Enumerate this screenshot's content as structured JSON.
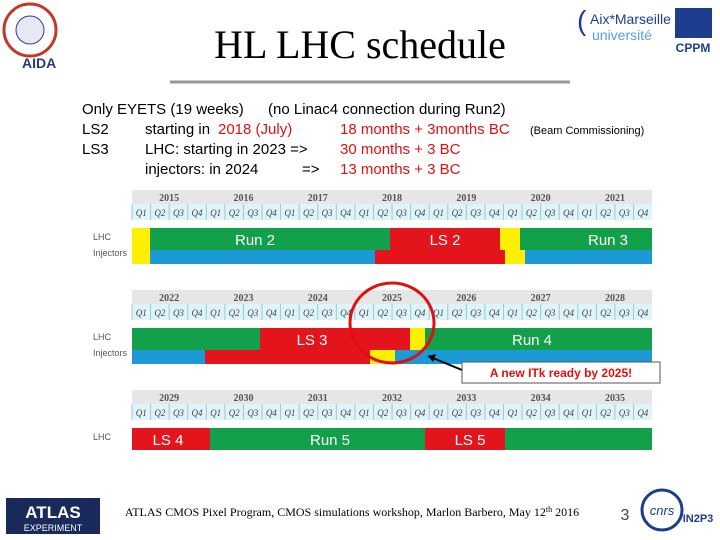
{
  "header": {
    "title": "HL LHC schedule",
    "logo_left": "AIDA",
    "logo_right_1": "Aix*Marseille",
    "logo_right_2": "université",
    "logo_right_3": "CPPM"
  },
  "notes": [
    [
      {
        "t": "Only EYETS (19 weeks)"
      },
      {
        "t": "(no Linac4 connection during Run2)"
      }
    ],
    [
      {
        "t": "LS2"
      },
      {
        "t": "starting in"
      },
      {
        "t": "2018 (July)",
        "red": true
      },
      {
        "t": "18 months + 3months BC",
        "red": true
      },
      {
        "t": "(Beam Commissioning)",
        "small": true
      }
    ],
    [
      {
        "t": "LS3"
      },
      {
        "t": "LHC: starting in 2023 =>"
      },
      {
        "t": "30 months + 3 BC",
        "red": true
      }
    ],
    [
      {
        "t": "injectors: in 2024"
      },
      {
        "t": "=>"
      },
      {
        "t": "13 months + 3 BC",
        "red": true
      }
    ]
  ],
  "timeline": {
    "quarters": [
      "Q1",
      "Q2",
      "Q3",
      "Q4"
    ],
    "row_labels": [
      "LHC",
      "Injectors"
    ],
    "panels": [
      {
        "years": [
          "2015",
          "2016",
          "2017",
          "2018",
          "2019",
          "2020",
          "2021"
        ],
        "labels": [
          "Run 2",
          "LS 2",
          "Run 3"
        ]
      },
      {
        "years": [
          "2022",
          "2023",
          "2024",
          "2025",
          "2026",
          "2027",
          "2028"
        ],
        "labels": [
          "LS 3",
          "Run 4"
        ]
      },
      {
        "years": [
          "2029",
          "2030",
          "2031",
          "2032",
          "2033",
          "2034",
          "2035"
        ],
        "labels": [
          "LS 4",
          "Run 5",
          "LS 5"
        ]
      }
    ],
    "callout": "A new ITk ready by 2025!"
  },
  "footer": {
    "logo_left": "ATLAS",
    "logo_left_sub": "EXPERIMENT",
    "text_before": "ATLAS CMOS Pixel Program, CMOS simulations workshop, Marlon Barbero, May 12",
    "text_sup": "th",
    "text_after": " 2016",
    "page": "3",
    "logo_right": "cnrs",
    "logo_right_2": "IN2P3"
  }
}
